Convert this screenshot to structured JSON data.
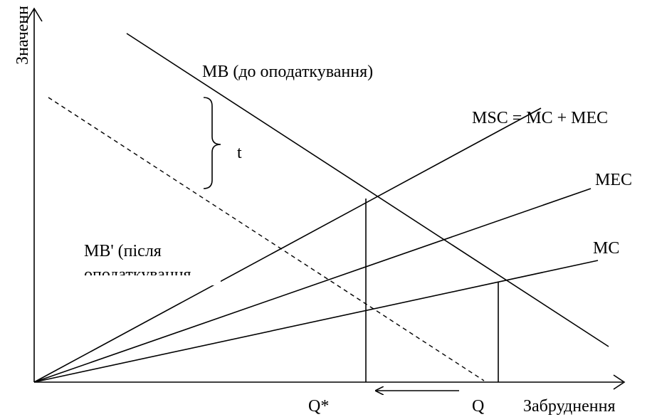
{
  "axes": {
    "y_label": "Значенн",
    "x_label": "Забруднення"
  },
  "curves": {
    "mb": "MB (до оподаткування)",
    "msc": "MSC = MC + MEC",
    "mec": "MEC",
    "mc": "MC",
    "mb_after_line1": "MB' (після",
    "mb_after_line2": "оподаткування"
  },
  "tax_label": "t",
  "quantities": {
    "q_star": "Q*",
    "q": "Q"
  },
  "colors": {
    "line": "#000000",
    "background": "#ffffff"
  }
}
